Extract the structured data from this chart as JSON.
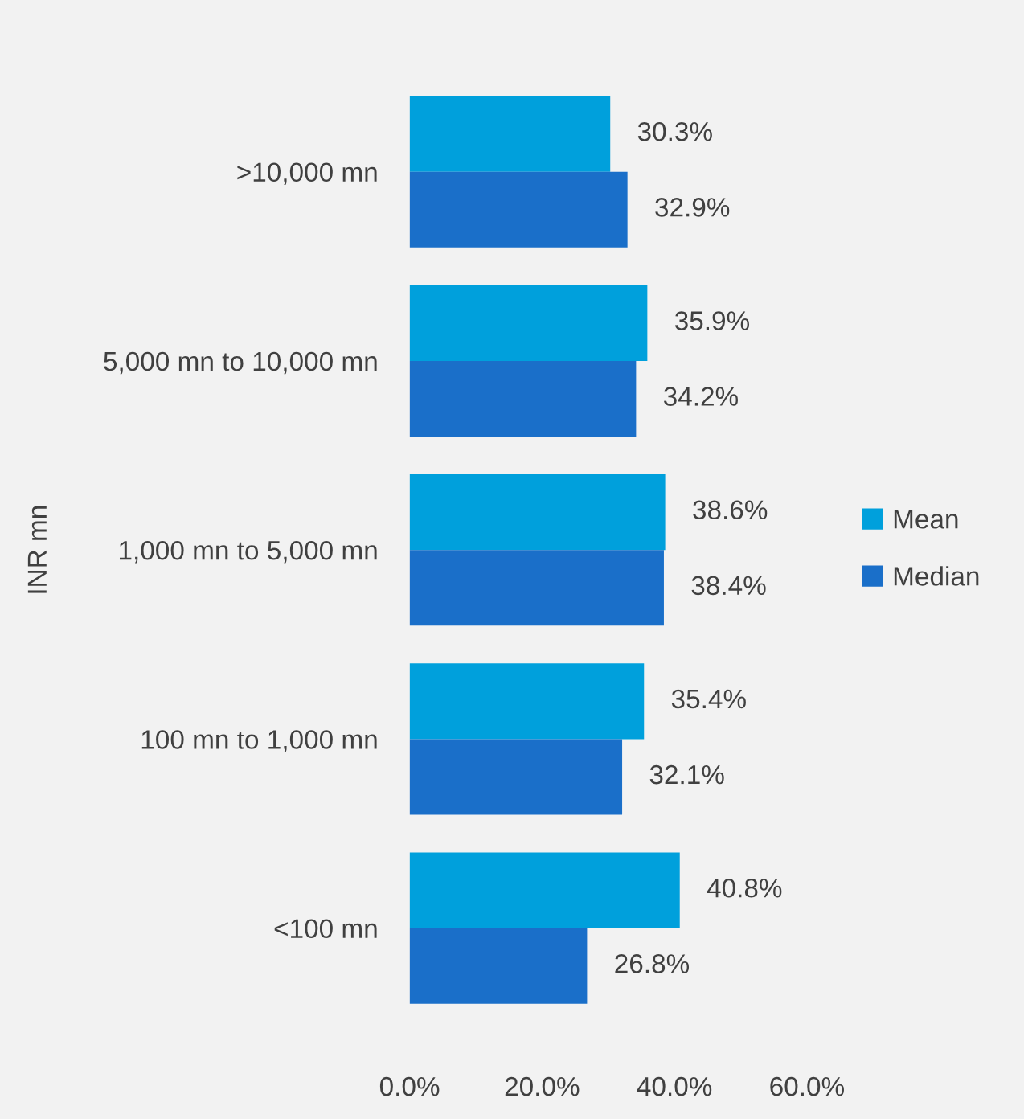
{
  "chart_data": {
    "type": "bar",
    "orientation": "horizontal",
    "ylabel": "INR mn",
    "categories": [
      ">10,000 mn",
      "5,000 mn to 10,000 mn",
      "1,000 mn to 5,000 mn",
      "100 mn to 1,000 mn",
      "<100 mn"
    ],
    "series": [
      {
        "name": "Mean",
        "color": "#00a0dc",
        "values": [
          30.3,
          35.9,
          38.6,
          35.4,
          40.8
        ],
        "value_labels": [
          "30.3%",
          "35.9%",
          "38.6%",
          "35.4%",
          "40.8%"
        ]
      },
      {
        "name": "Median",
        "color": "#1a6fc9",
        "values": [
          32.9,
          34.2,
          38.4,
          32.1,
          26.8
        ],
        "value_labels": [
          "32.9%",
          "34.2%",
          "38.4%",
          "32.1%",
          "26.8%"
        ]
      }
    ],
    "xlim": [
      0,
      60
    ],
    "xticks": [
      {
        "value": 0,
        "label": "0.0%"
      },
      {
        "value": 20,
        "label": "20.0%"
      },
      {
        "value": 40,
        "label": "40.0%"
      },
      {
        "value": 60,
        "label": "60.0%"
      }
    ],
    "grid": false,
    "legend": "right"
  }
}
